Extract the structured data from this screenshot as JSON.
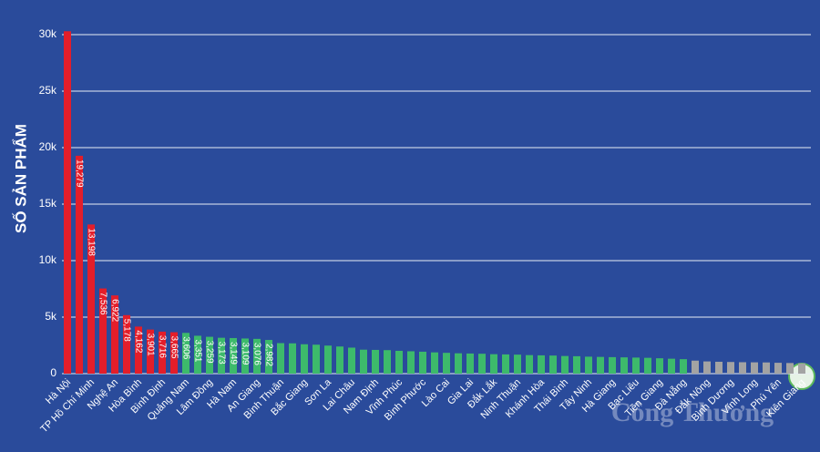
{
  "chart_data": {
    "type": "bar",
    "y_label": "SỐ SẢN PHẨM",
    "watermark": "Công Thương",
    "categories": [
      "Hà Nội",
      null,
      "TP Hồ Chí Minh",
      null,
      "Nghệ An",
      null,
      "Hòa Bình",
      null,
      "Bình Định",
      null,
      "Quảng Nam",
      null,
      "Lâm Đồng",
      null,
      "Hà Nam",
      null,
      "An Giang",
      null,
      "Bình Thuận",
      null,
      "Bắc Giang",
      null,
      "Sơn La",
      null,
      "Lai Châu",
      null,
      "Nam Định",
      null,
      "Vĩnh Phúc",
      null,
      "Bình Phước",
      null,
      "Lào Cai",
      null,
      "Gia Lai",
      null,
      "Đắk Lắk",
      null,
      "Ninh Thuận",
      null,
      "Khánh Hòa",
      null,
      "Thái Bình",
      null,
      "Tây Ninh",
      null,
      "Hà Giang",
      null,
      "Bạc Liêu",
      null,
      "Tiền Giang",
      null,
      "Đà Nẵng",
      null,
      "Đắk Nông",
      null,
      "Bình Dương",
      null,
      "Vĩnh Long",
      null,
      "Phú Yên",
      null,
      "Kiên Giang"
    ],
    "values": [
      30300,
      19279,
      13198,
      7536,
      6922,
      5178,
      4162,
      3901,
      3716,
      3665,
      3606,
      3351,
      3259,
      3173,
      3149,
      3109,
      3076,
      2982,
      2700,
      2680,
      2600,
      2560,
      2480,
      2400,
      2300,
      2120,
      2100,
      2080,
      2020,
      1980,
      1940,
      1880,
      1840,
      1800,
      1780,
      1760,
      1720,
      1700,
      1680,
      1640,
      1620,
      1600,
      1560,
      1540,
      1500,
      1480,
      1460,
      1440,
      1420,
      1400,
      1360,
      1320,
      1280,
      1150,
      1080,
      1050,
      1030,
      1010,
      1000,
      990,
      960,
      940,
      910
    ],
    "value_labels": [
      null,
      "19,279",
      "13,198",
      "7,536",
      "6,922",
      "5,178",
      "4,162",
      "3,901",
      "3,716",
      "3,665",
      "3,606",
      "3,351",
      "3,259",
      "3,173",
      "3,149",
      "3,109",
      "3,076",
      "2,982",
      null,
      null,
      null,
      null,
      null,
      null,
      null,
      null,
      null,
      null,
      null,
      null,
      null,
      null,
      null,
      null,
      null,
      null,
      null,
      null,
      null,
      null,
      null,
      null,
      null,
      null,
      null,
      null,
      null,
      null,
      null,
      null,
      null,
      null,
      null,
      null,
      null,
      null,
      null,
      null,
      null,
      null,
      null,
      null,
      null
    ],
    "colors": [
      "#e31e2a",
      "#e31e2a",
      "#e31e2a",
      "#e31e2a",
      "#e31e2a",
      "#e31e2a",
      "#e31e2a",
      "#e31e2a",
      "#e31e2a",
      "#e31e2a",
      "#3dba6b",
      "#3dba6b",
      "#3dba6b",
      "#3dba6b",
      "#3dba6b",
      "#3dba6b",
      "#3dba6b",
      "#3dba6b",
      "#3dba6b",
      "#3dba6b",
      "#3dba6b",
      "#3dba6b",
      "#3dba6b",
      "#3dba6b",
      "#3dba6b",
      "#3dba6b",
      "#3dba6b",
      "#3dba6b",
      "#3dba6b",
      "#3dba6b",
      "#3dba6b",
      "#3dba6b",
      "#3dba6b",
      "#3dba6b",
      "#3dba6b",
      "#3dba6b",
      "#3dba6b",
      "#3dba6b",
      "#3dba6b",
      "#3dba6b",
      "#3dba6b",
      "#3dba6b",
      "#3dba6b",
      "#3dba6b",
      "#3dba6b",
      "#3dba6b",
      "#3dba6b",
      "#3dba6b",
      "#3dba6b",
      "#3dba6b",
      "#3dba6b",
      "#3dba6b",
      "#3dba6b",
      "#a3a3a3",
      "#a3a3a3",
      "#a3a3a3",
      "#a3a3a3",
      "#a3a3a3",
      "#a3a3a3",
      "#a3a3a3",
      "#a3a3a3",
      "#a3a3a3",
      "#a3a3a3"
    ],
    "ylim": [
      0,
      30000
    ],
    "yticks": [
      0,
      {
        "value": 5000,
        "label": "5k"
      },
      {
        "value": 10000,
        "label": "10k"
      },
      {
        "value": 15000,
        "label": "15k"
      },
      {
        "value": 20000,
        "label": "20k"
      },
      {
        "value": 25000,
        "label": "25k"
      },
      {
        "value": 30000,
        "label": "30k"
      }
    ],
    "grid": true
  }
}
